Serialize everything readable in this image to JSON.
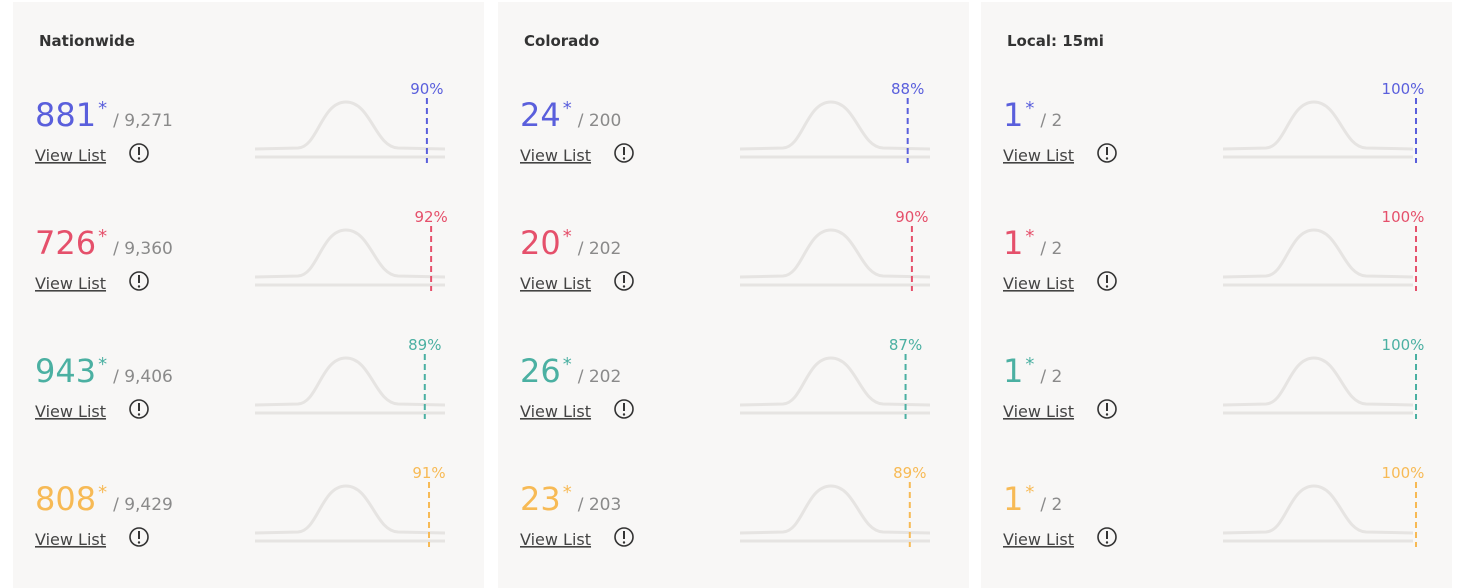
{
  "link_label": "View List",
  "colors": [
    "#5a5fdc",
    "#e5506b",
    "#4bb0a2",
    "#f7ba55"
  ],
  "panels": [
    {
      "title": "Nationwide",
      "rows": [
        {
          "rank": "881",
          "mark": "*",
          "total": "/ 9,271",
          "percentile": 90,
          "percentile_label": "90%"
        },
        {
          "rank": "726",
          "mark": "*",
          "total": "/ 9,360",
          "percentile": 92,
          "percentile_label": "92%"
        },
        {
          "rank": "943",
          "mark": "*",
          "total": "/ 9,406",
          "percentile": 89,
          "percentile_label": "89%"
        },
        {
          "rank": "808",
          "mark": "*",
          "total": "/ 9,429",
          "percentile": 91,
          "percentile_label": "91%"
        }
      ]
    },
    {
      "title": "Colorado",
      "rows": [
        {
          "rank": "24",
          "mark": "*",
          "total": "/ 200",
          "percentile": 88,
          "percentile_label": "88%"
        },
        {
          "rank": "20",
          "mark": "*",
          "total": "/ 202",
          "percentile": 90,
          "percentile_label": "90%"
        },
        {
          "rank": "26",
          "mark": "*",
          "total": "/ 202",
          "percentile": 87,
          "percentile_label": "87%"
        },
        {
          "rank": "23",
          "mark": "*",
          "total": "/ 203",
          "percentile": 89,
          "percentile_label": "89%"
        }
      ]
    },
    {
      "title": "Local: 15mi",
      "rows": [
        {
          "rank": "1",
          "mark": "*",
          "total": "/ 2",
          "percentile": 100,
          "percentile_label": "100%"
        },
        {
          "rank": "1",
          "mark": "*",
          "total": "/ 2",
          "percentile": 100,
          "percentile_label": "100%"
        },
        {
          "rank": "1",
          "mark": "*",
          "total": "/ 2",
          "percentile": 100,
          "percentile_label": "100%"
        },
        {
          "rank": "1",
          "mark": "*",
          "total": "/ 2",
          "percentile": 100,
          "percentile_label": "100%"
        }
      ]
    }
  ]
}
